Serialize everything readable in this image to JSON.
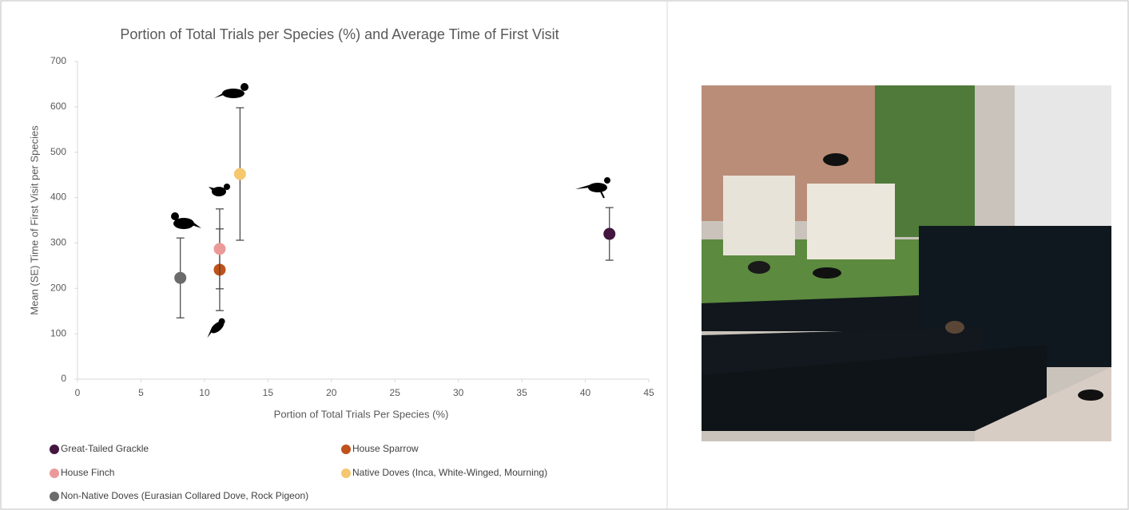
{
  "chart_data": {
    "type": "scatter",
    "title": "Portion of Total Trials per Species (%) and Average Time of First Visit",
    "x_label": "Portion of Total Trials Per Species (%)",
    "y_label": "Mean (SE) Time of First Visit per Species",
    "xlim": [
      0,
      45
    ],
    "xticks": [
      0,
      5,
      10,
      15,
      20,
      25,
      30,
      35,
      40,
      45
    ],
    "ylim": [
      0,
      700
    ],
    "yticks": [
      0,
      100,
      200,
      300,
      400,
      500,
      600,
      700
    ],
    "series": [
      {
        "name": "Great-Tailed Grackle",
        "color": "#43163f",
        "x": [
          41.9
        ],
        "values": [
          320
        ],
        "errors": [
          58
        ]
      },
      {
        "name": "House Sparrow",
        "color": "#c0521c",
        "x": [
          11.2
        ],
        "values": [
          241
        ],
        "errors": [
          90
        ]
      },
      {
        "name": "House Finch",
        "color": "#eb9a9a",
        "x": [
          11.2
        ],
        "values": [
          287
        ],
        "errors": [
          88
        ]
      },
      {
        "name": "Native Doves (Inca, White-Winged, Mourning)",
        "color": "#f5c76e",
        "x": [
          12.8
        ],
        "values": [
          452
        ],
        "errors": [
          146
        ]
      },
      {
        "name": "Non-Native Doves (Eurasian Collared Dove, Rock Pigeon)",
        "color": "#6b6b6b",
        "x": [
          8.1
        ],
        "values": [
          223
        ],
        "errors": [
          88
        ]
      }
    ]
  }
}
